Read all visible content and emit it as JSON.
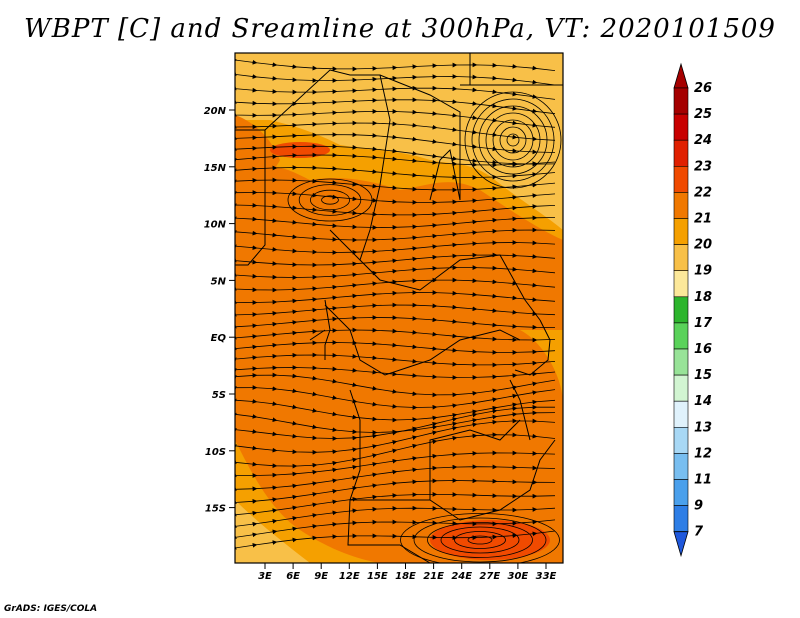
{
  "title": "WBPT [C] and Sreamline at 300hPa, VT: 2020101509",
  "credit": "GrADS: IGES/COLA",
  "map": {
    "lat_labels": [
      "20N",
      "15N",
      "10N",
      "5N",
      "EQ",
      "5S",
      "10S",
      "15S"
    ],
    "lon_labels": [
      "3E",
      "6E",
      "9E",
      "12E",
      "15E",
      "18E",
      "21E",
      "24E",
      "27E",
      "30E",
      "33E"
    ],
    "fill_level_color": "#f06a00",
    "streamline_color": "#000000"
  },
  "colorbar": {
    "labels": [
      "26",
      "25",
      "24",
      "23",
      "22",
      "21",
      "20",
      "19",
      "18",
      "17",
      "16",
      "15",
      "14",
      "13",
      "12",
      "11",
      "9",
      "7"
    ],
    "colors": [
      "#a50000",
      "#c80000",
      "#e02000",
      "#f04a00",
      "#f07800",
      "#f5a000",
      "#f8c048",
      "#fce89a",
      "#2db52d",
      "#5ad25a",
      "#98e398",
      "#d2f5d2",
      "#e0f2fc",
      "#a8d8f5",
      "#78bef0",
      "#4aa0ec",
      "#2e7ee6",
      "#1f58dc"
    ],
    "top_arrow_color": "#a50000",
    "bottom_arrow_color": "#1f58dc"
  }
}
